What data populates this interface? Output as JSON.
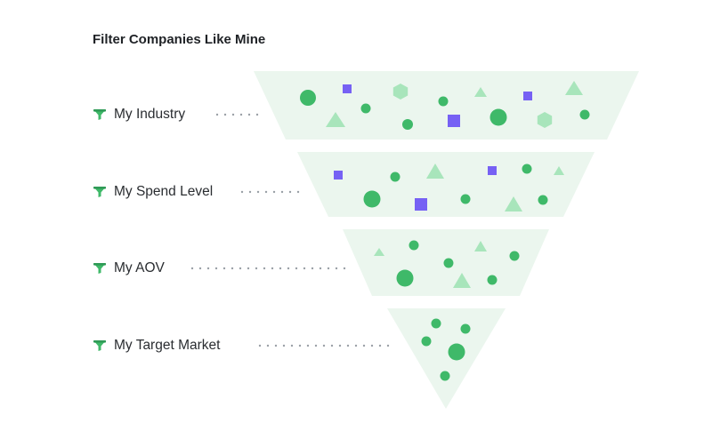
{
  "title": "Filter Companies Like Mine",
  "colors": {
    "band_fill": "#ebf6ee",
    "green_circle": "#3fb969",
    "light_green": "#a8e5bb",
    "purple": "#7661f4",
    "dots": "#9aa0a6",
    "icon": "#3fb969"
  },
  "filters": [
    {
      "label": "My Industry",
      "icon": "funnel-icon"
    },
    {
      "label": "My Spend Level",
      "icon": "funnel-icon"
    },
    {
      "label": "My AOV",
      "icon": "funnel-icon"
    },
    {
      "label": "My Target Market",
      "icon": "funnel-icon"
    }
  ]
}
